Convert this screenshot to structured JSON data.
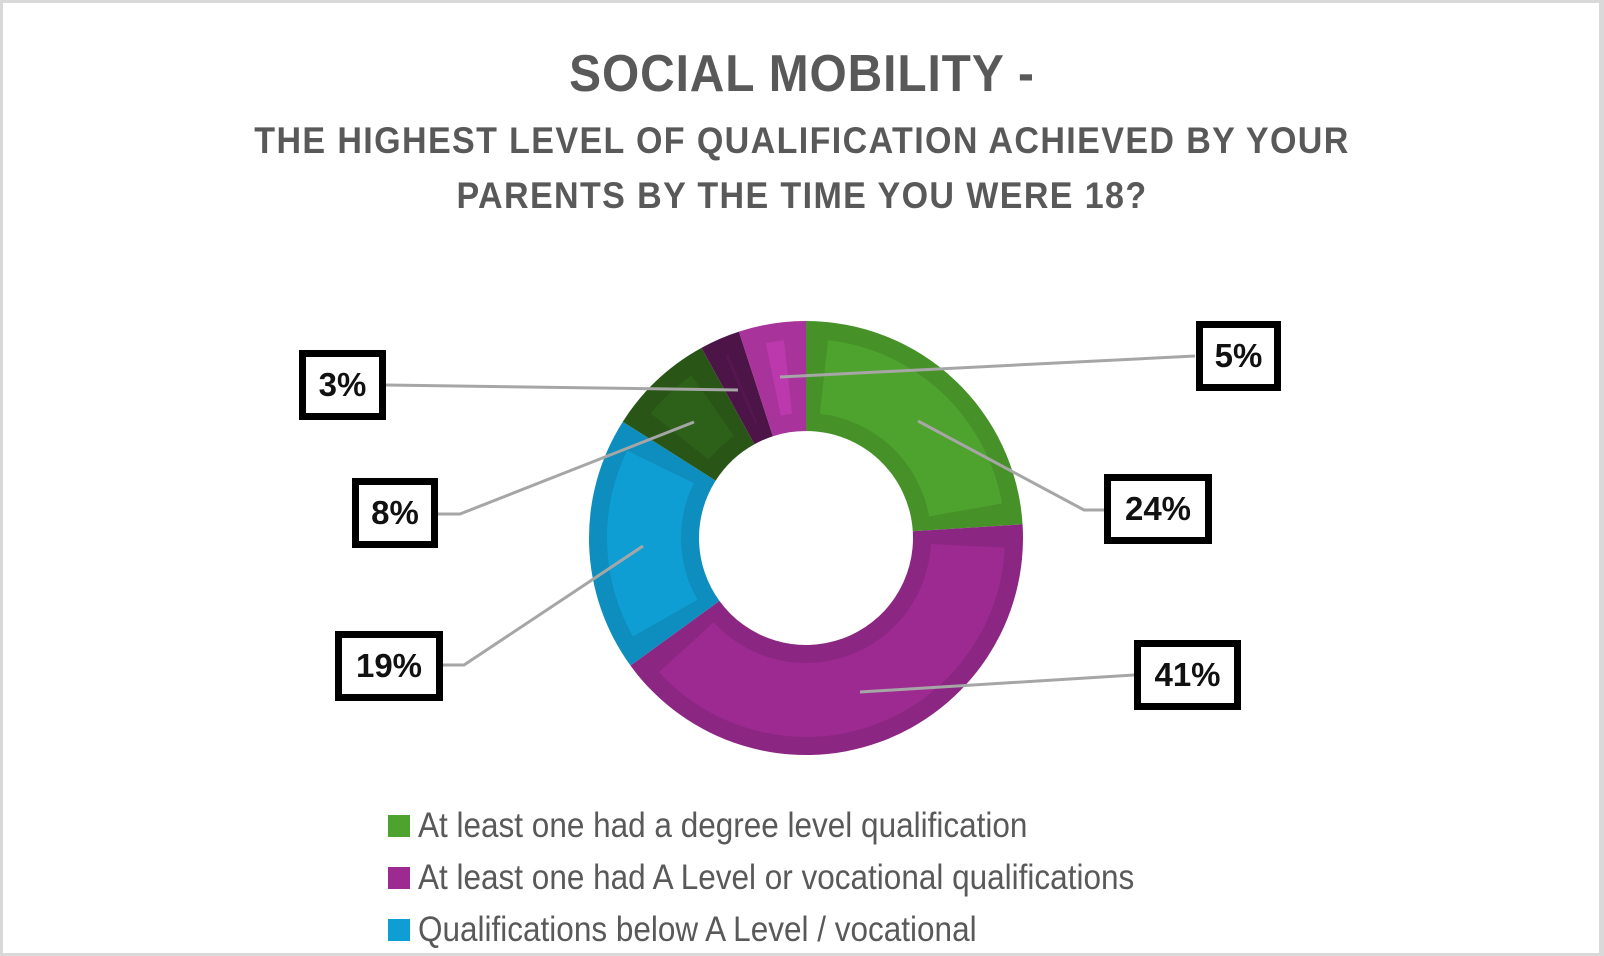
{
  "title": {
    "line1": "SOCIAL MOBILITY -",
    "line2": "THE HIGHEST LEVEL OF QUALIFICATION ACHIEVED BY YOUR",
    "line3": "PARENTS BY THE TIME YOU WERE 18?"
  },
  "labels": {
    "green": "24%",
    "purple": "41%",
    "blue": "19%",
    "darkgreen": "8%",
    "darkpurple": "3%",
    "magenta": "5%"
  },
  "legend": [
    {
      "label": "At least one had a degree level qualification",
      "color": "#4ea22e"
    },
    {
      "label": "At least one had A Level or vocational qualifications",
      "color": "#9c2a91"
    },
    {
      "label": "Qualifications below A Level / vocational",
      "color": "#0f9ed3"
    }
  ],
  "chart_data": {
    "type": "pie",
    "subtype": "doughnut",
    "title": "SOCIAL MOBILITY - THE HIGHEST LEVEL OF QUALIFICATION ACHIEVED BY YOUR PARENTS BY THE TIME YOU WERE 18?",
    "categories": [
      "At least one had a degree level qualification",
      "At least one had A Level or vocational qualifications",
      "Qualifications below A Level / vocational",
      "(not shown in legend)",
      "(not shown in legend)",
      "(not shown in legend)"
    ],
    "values": [
      24,
      41,
      19,
      8,
      3,
      5
    ],
    "colors": [
      "#4ea22e",
      "#9c2a91",
      "#0f9ed3",
      "#2d6019",
      "#561650",
      "#bb39ac"
    ],
    "data_labels": [
      "24%",
      "41%",
      "19%",
      "8%",
      "3%",
      "5%"
    ],
    "legend_position": "bottom",
    "start_angle": 0,
    "direction": "clockwise"
  }
}
